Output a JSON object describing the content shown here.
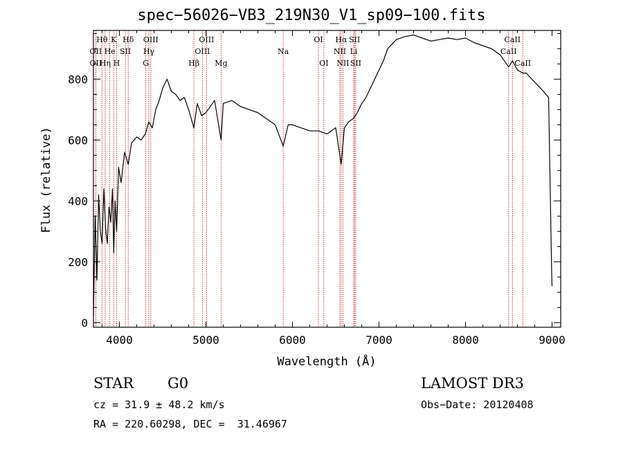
{
  "title": "spec−56026−VB3_219N30_V1_sp09−100.fits",
  "info": {
    "obj_class": "STAR",
    "subclass": "G0",
    "cz": "cz = 31.9 ± 48.2 km/s",
    "radec": "RA = 220.60298, DEC =  31.46967",
    "survey": "LAMOST DR3",
    "obs_date": "Obs−Date: 20120408"
  },
  "colors": {
    "line": "#000000",
    "marker": "#c00000"
  },
  "chart_data": {
    "type": "line",
    "title": "spec−56026−VB3_219N30_V1_sp09−100.fits",
    "xlabel": "Wavelength (Å)",
    "ylabel": "Flux (relative)",
    "xlim": [
      3700,
      9100
    ],
    "ylim": [
      -15,
      960
    ],
    "xticks": [
      4000,
      5000,
      6000,
      7000,
      8000,
      9000
    ],
    "yticks": [
      0,
      200,
      400,
      600,
      800
    ],
    "series": [
      {
        "name": "flux",
        "x": [
          3700,
          3720,
          3740,
          3760,
          3780,
          3800,
          3820,
          3840,
          3860,
          3880,
          3900,
          3920,
          3934,
          3950,
          3968,
          3990,
          4020,
          4060,
          4102,
          4140,
          4200,
          4250,
          4300,
          4340,
          4380,
          4420,
          4460,
          4500,
          4550,
          4600,
          4650,
          4700,
          4750,
          4800,
          4861,
          4900,
          4950,
          5000,
          5100,
          5175,
          5200,
          5300,
          5400,
          5500,
          5600,
          5700,
          5800,
          5893,
          5950,
          6000,
          6100,
          6200,
          6300,
          6400,
          6500,
          6563,
          6600,
          6650,
          6700,
          6750,
          6800,
          6850,
          6900,
          6950,
          7000,
          7050,
          7100,
          7150,
          7200,
          7300,
          7400,
          7500,
          7600,
          7700,
          7800,
          7900,
          8000,
          8100,
          8200,
          8300,
          8400,
          8498,
          8542,
          8600,
          8662,
          8700,
          8800,
          8900,
          8960,
          8980,
          8995,
          9000
        ],
        "y": [
          20,
          350,
          140,
          420,
          300,
          260,
          440,
          310,
          260,
          380,
          330,
          440,
          230,
          400,
          300,
          510,
          460,
          560,
          520,
          590,
          610,
          600,
          620,
          660,
          640,
          700,
          730,
          770,
          800,
          760,
          750,
          730,
          740,
          700,
          640,
          720,
          680,
          690,
          730,
          600,
          720,
          730,
          710,
          700,
          690,
          670,
          650,
          580,
          650,
          650,
          640,
          630,
          630,
          620,
          640,
          520,
          640,
          660,
          670,
          690,
          720,
          740,
          770,
          800,
          830,
          860,
          900,
          915,
          930,
          940,
          945,
          935,
          925,
          930,
          935,
          930,
          935,
          920,
          910,
          900,
          880,
          840,
          860,
          830,
          820,
          820,
          790,
          760,
          740,
          420,
          170,
          120
        ]
      }
    ],
    "lines": [
      {
        "name": "OII",
        "wl": 3727,
        "row": 2
      },
      {
        "name": "Hθ",
        "wl": 3798,
        "row": 1
      },
      {
        "name": "OII",
        "wl": 3727,
        "row": 3
      },
      {
        "name": "Hη",
        "wl": 3835,
        "row": 3
      },
      {
        "name": "He",
        "wl": 3889,
        "row": 2
      },
      {
        "name": "K",
        "wl": 3934,
        "row": 1
      },
      {
        "name": "SII",
        "wl": 4069,
        "row": 2
      },
      {
        "name": "H",
        "wl": 3968,
        "row": 3
      },
      {
        "name": "Hδ",
        "wl": 4102,
        "row": 1
      },
      {
        "name": "OIII",
        "wl": 4363,
        "row": 1
      },
      {
        "name": "Hγ",
        "wl": 4340,
        "row": 2
      },
      {
        "name": "G",
        "wl": 4305,
        "row": 3
      },
      {
        "name": "Hβ",
        "wl": 4861,
        "row": 3
      },
      {
        "name": "OIII",
        "wl": 5007,
        "row": 1
      },
      {
        "name": "OIII",
        "wl": 4959,
        "row": 2
      },
      {
        "name": "Mg",
        "wl": 5175,
        "row": 3
      },
      {
        "name": "Na",
        "wl": 5893,
        "row": 2
      },
      {
        "name": "OI",
        "wl": 6300,
        "row": 1
      },
      {
        "name": "OI",
        "wl": 6363,
        "row": 3
      },
      {
        "name": "Hα",
        "wl": 6563,
        "row": 1
      },
      {
        "name": "NII",
        "wl": 6548,
        "row": 2
      },
      {
        "name": "NII",
        "wl": 6583,
        "row": 3
      },
      {
        "name": "SII",
        "wl": 6717,
        "row": 1
      },
      {
        "name": "Li",
        "wl": 6708,
        "row": 2
      },
      {
        "name": "SII",
        "wl": 6731,
        "row": 3
      },
      {
        "name": "CaII",
        "wl": 8542,
        "row": 1
      },
      {
        "name": "CaII",
        "wl": 8498,
        "row": 2
      },
      {
        "name": "CaII",
        "wl": 8662,
        "row": 3
      }
    ]
  }
}
